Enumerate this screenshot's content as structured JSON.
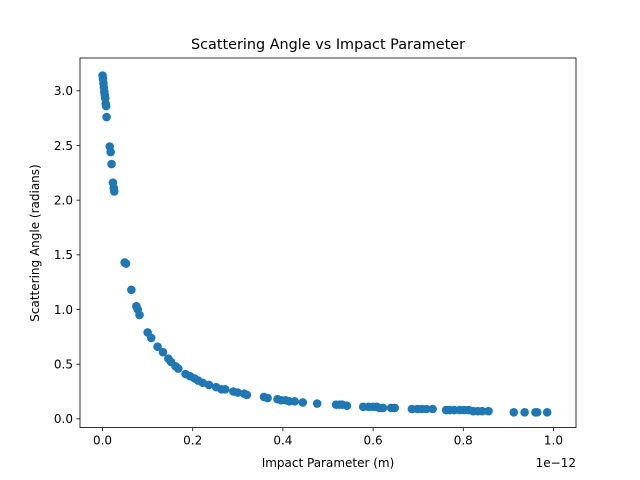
{
  "chart_data": {
    "type": "scatter",
    "title": "Scattering Angle vs Impact Parameter",
    "xlabel": "Impact Parameter (m)",
    "ylabel": "Scattering Angle (radians)",
    "x_offset_label": "1e−12",
    "xlim": [
      -0.05,
      1.05
    ],
    "ylim": [
      -0.08,
      3.3
    ],
    "x_ticks": [
      0.0,
      0.2,
      0.4,
      0.6,
      0.8,
      1.0
    ],
    "x_tick_labels": [
      "0.0",
      "0.2",
      "0.4",
      "0.6",
      "0.8",
      "1.0"
    ],
    "y_ticks": [
      0.0,
      0.5,
      1.0,
      1.5,
      2.0,
      2.5,
      3.0
    ],
    "y_tick_labels": [
      "0.0",
      "0.5",
      "1.0",
      "1.5",
      "2.0",
      "2.5",
      "3.0"
    ],
    "grid": false,
    "marker_color": "#1f77b4",
    "series": [
      {
        "x": [
          0.0,
          0.001,
          0.002,
          0.003,
          0.004,
          0.005,
          0.006,
          0.007,
          0.008,
          0.009,
          0.016,
          0.018,
          0.02,
          0.023,
          0.025,
          0.026,
          0.049,
          0.052,
          0.064,
          0.075,
          0.078,
          0.082,
          0.1,
          0.108,
          0.122,
          0.134,
          0.146,
          0.152,
          0.162,
          0.168,
          0.184,
          0.194,
          0.204,
          0.212,
          0.222,
          0.236,
          0.252,
          0.264,
          0.272,
          0.29,
          0.3,
          0.314,
          0.32,
          0.358,
          0.366,
          0.388,
          0.396,
          0.406,
          0.414,
          0.426,
          0.444,
          0.476,
          0.518,
          0.526,
          0.532,
          0.542,
          0.578,
          0.59,
          0.6,
          0.608,
          0.614,
          0.622,
          0.64,
          0.648,
          0.686,
          0.698,
          0.708,
          0.718,
          0.732,
          0.762,
          0.77,
          0.78,
          0.792,
          0.802,
          0.812,
          0.822,
          0.832,
          0.842,
          0.856,
          0.912,
          0.936,
          0.96,
          0.964,
          0.986
        ],
        "y": [
          3.14,
          3.11,
          3.07,
          3.03,
          2.99,
          2.96,
          2.93,
          2.88,
          2.86,
          2.76,
          2.49,
          2.44,
          2.33,
          2.16,
          2.11,
          2.08,
          1.43,
          1.42,
          1.18,
          1.03,
          1.0,
          0.95,
          0.79,
          0.74,
          0.66,
          0.61,
          0.55,
          0.52,
          0.48,
          0.46,
          0.41,
          0.39,
          0.37,
          0.35,
          0.33,
          0.31,
          0.29,
          0.27,
          0.27,
          0.25,
          0.24,
          0.23,
          0.22,
          0.2,
          0.19,
          0.18,
          0.17,
          0.17,
          0.16,
          0.16,
          0.15,
          0.14,
          0.13,
          0.13,
          0.13,
          0.12,
          0.11,
          0.11,
          0.11,
          0.11,
          0.1,
          0.1,
          0.1,
          0.1,
          0.09,
          0.09,
          0.09,
          0.09,
          0.09,
          0.08,
          0.08,
          0.08,
          0.08,
          0.08,
          0.08,
          0.07,
          0.07,
          0.07,
          0.07,
          0.06,
          0.06,
          0.06,
          0.06,
          0.06
        ]
      }
    ]
  }
}
